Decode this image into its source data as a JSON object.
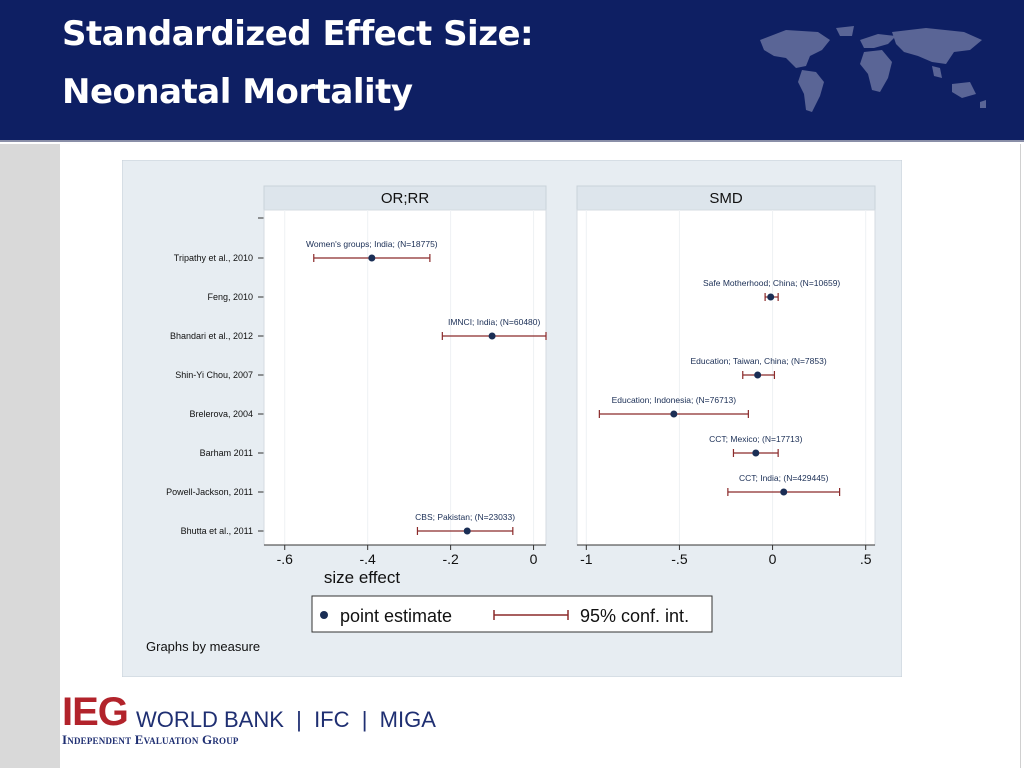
{
  "slide": {
    "title_line1": "Standardized Effect Size:",
    "title_line2": "Neonatal Mortality",
    "colors": {
      "header": "#0e1f63",
      "map": "#5a6596",
      "accent": "#b2232b",
      "logo_text": "#1f2f72"
    }
  },
  "logo": {
    "mark": "IEG",
    "organizations": "WORLD BANK  |  IFC  |  MIGA",
    "subtitle": "Independent Evaluation Group",
    "icon": "world-map-icon"
  },
  "chart_data": {
    "type": "scatter",
    "subtype": "forest-plot",
    "xlabel": "size effect",
    "note": "Graphs by measure",
    "studies": [
      "Tripathy et al., 2010",
      "Feng, 2010",
      "Bhandari et al., 2012",
      "Shin-Yi Chou, 2007",
      "Brelerova, 2004",
      "Barham  2011",
      "Powell-Jackson, 2011",
      "Bhutta et al., 2011"
    ],
    "legend": {
      "point": "point estimate",
      "interval": "95% conf. int.",
      "position": "bottom"
    },
    "colors": {
      "point": "#1a2e55",
      "ci": "#8b2a2a",
      "panel_header": "#dde5ec",
      "outer_bg": "#e7edf2"
    },
    "panels": [
      {
        "title": "OR;RR",
        "xlim": [
          -0.65,
          0.03
        ],
        "xticks": [
          -0.6,
          -0.4,
          -0.2,
          0
        ],
        "xtick_labels": [
          "-.6",
          "-.4",
          "-.2",
          "0"
        ],
        "points": [
          {
            "study_index": 0,
            "label": "Women's groups; India; (N=18775)",
            "estimate": -0.39,
            "ci": [
              -0.53,
              -0.25
            ]
          },
          {
            "study_index": 2,
            "label": "IMNCI; India; (N=60480)",
            "estimate": -0.1,
            "ci": [
              -0.22,
              0.03
            ]
          },
          {
            "study_index": 7,
            "label": "CBS; Pakistan; (N=23033)",
            "estimate": -0.16,
            "ci": [
              -0.28,
              -0.05
            ]
          }
        ]
      },
      {
        "title": "SMD",
        "xlim": [
          -1.05,
          0.55
        ],
        "xticks": [
          -1,
          -0.5,
          0,
          0.5
        ],
        "xtick_labels": [
          "-1",
          "-.5",
          "0",
          ".5"
        ],
        "points": [
          {
            "study_index": 1,
            "label": "Safe Motherhood; China; (N=10659)",
            "estimate": -0.01,
            "ci": [
              -0.04,
              0.03
            ]
          },
          {
            "study_index": 3,
            "label": "Education; Taiwan, China; (N=7853)",
            "estimate": -0.08,
            "ci": [
              -0.16,
              0.01
            ]
          },
          {
            "study_index": 4,
            "label": "Education; Indonesia; (N=76713)",
            "estimate": -0.53,
            "ci": [
              -0.93,
              -0.13
            ]
          },
          {
            "study_index": 5,
            "label": "CCT; Mexico; (N=17713)",
            "estimate": -0.09,
            "ci": [
              -0.21,
              0.03
            ]
          },
          {
            "study_index": 6,
            "label": "CCT; India; (N=429445)",
            "estimate": 0.06,
            "ci": [
              -0.24,
              0.36
            ]
          }
        ]
      }
    ]
  }
}
